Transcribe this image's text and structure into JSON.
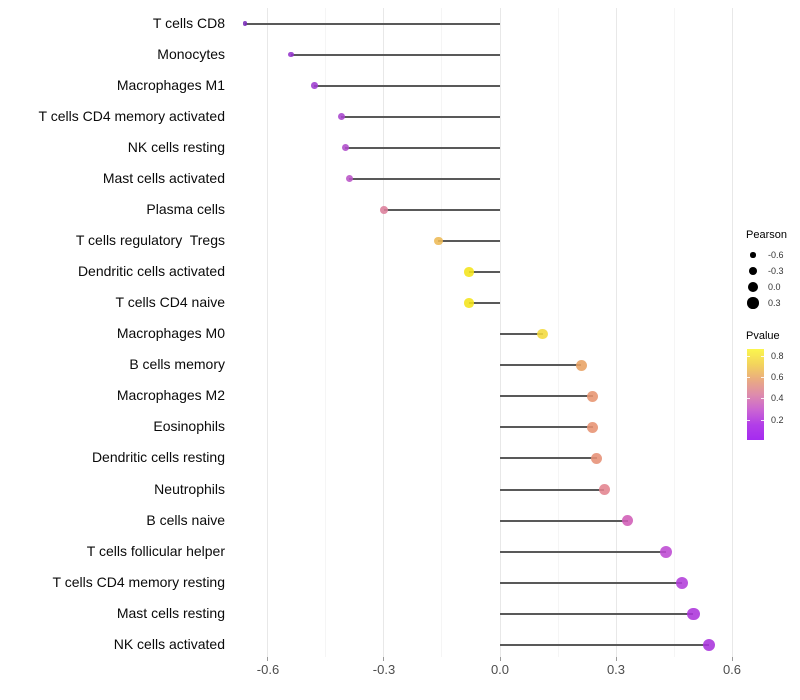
{
  "chart_data": {
    "type": "lollipop",
    "title": "",
    "xlabel": "",
    "ylabel": "",
    "xlim": [
      -0.7,
      0.63
    ],
    "x_ticks": [
      -0.6,
      -0.3,
      0.0,
      0.3,
      0.6
    ],
    "x_tick_labels": [
      "-0.6",
      "-0.3",
      "0.0",
      "0.3",
      "0.6"
    ],
    "x_minor_ticks": [
      -0.45,
      -0.15,
      0.15,
      0.45
    ],
    "grid": "vertical-only",
    "stem_color": "#595959",
    "points": [
      {
        "category": "T cells CD8",
        "pearson": -0.66,
        "pvalue": 0.02,
        "color": "#7a2cba"
      },
      {
        "category": "Monocytes",
        "pearson": -0.54,
        "pvalue": 0.06,
        "color": "#9434cc"
      },
      {
        "category": "Macrophages M1",
        "pearson": -0.48,
        "pvalue": 0.08,
        "color": "#9e3dd0"
      },
      {
        "category": "T cells CD4 memory activated",
        "pearson": -0.41,
        "pvalue": 0.12,
        "color": "#a946ce"
      },
      {
        "category": "NK cells resting",
        "pearson": -0.4,
        "pvalue": 0.14,
        "color": "#af4ccb"
      },
      {
        "category": "Mast cells activated",
        "pearson": -0.39,
        "pvalue": 0.17,
        "color": "#b954c7"
      },
      {
        "category": "Plasma cells",
        "pearson": -0.3,
        "pvalue": 0.38,
        "color": "#dc7e9b"
      },
      {
        "category": "T cells regulatory  Tregs",
        "pearson": -0.16,
        "pvalue": 0.62,
        "color": "#edba55"
      },
      {
        "category": "Dendritic cells activated",
        "pearson": -0.08,
        "pvalue": 0.82,
        "color": "#f4e41a"
      },
      {
        "category": "T cells CD4 naive",
        "pearson": -0.08,
        "pvalue": 0.82,
        "color": "#f4e41a"
      },
      {
        "category": "Macrophages M0",
        "pearson": 0.11,
        "pvalue": 0.72,
        "color": "#f2d93c"
      },
      {
        "category": "B cells memory",
        "pearson": 0.21,
        "pvalue": 0.55,
        "color": "#e8a263"
      },
      {
        "category": "Macrophages M2",
        "pearson": 0.24,
        "pvalue": 0.5,
        "color": "#e79470"
      },
      {
        "category": "Eosinophils",
        "pearson": 0.24,
        "pvalue": 0.5,
        "color": "#e79272"
      },
      {
        "category": "Dendritic cells resting",
        "pearson": 0.25,
        "pvalue": 0.49,
        "color": "#e69075"
      },
      {
        "category": "Neutrophils",
        "pearson": 0.27,
        "pvalue": 0.43,
        "color": "#e2838e"
      },
      {
        "category": "B cells naive",
        "pearson": 0.33,
        "pvalue": 0.28,
        "color": "#d05cb6"
      },
      {
        "category": "T cells follicular helper",
        "pearson": 0.43,
        "pvalue": 0.21,
        "color": "#bd4ad3"
      },
      {
        "category": "T cells CD4 memory resting",
        "pearson": 0.47,
        "pvalue": 0.15,
        "color": "#b23dd9"
      },
      {
        "category": "Mast cells resting",
        "pearson": 0.5,
        "pvalue": 0.12,
        "color": "#ac34db"
      },
      {
        "category": "NK cells activated",
        "pearson": 0.54,
        "pvalue": 0.1,
        "color": "#a833dc"
      }
    ],
    "legend": {
      "size": {
        "title": "Pearson",
        "entries": [
          {
            "label": "-0.6",
            "value": -0.6
          },
          {
            "label": "-0.3",
            "value": -0.3
          },
          {
            "label": "0.0",
            "value": 0.0
          },
          {
            "label": "0.3",
            "value": 0.3
          }
        ]
      },
      "color": {
        "title": "Pvalue",
        "labels": [
          "0.8",
          "0.6",
          "0.4",
          "0.2"
        ],
        "label_values": [
          0.8,
          0.6,
          0.4,
          0.2
        ],
        "gradient_top_to_bottom": [
          "#fbf64e",
          "#f3d45c",
          "#eaac80",
          "#de8cac",
          "#cb66d2",
          "#b23ee8",
          "#a52bf0"
        ]
      }
    }
  }
}
